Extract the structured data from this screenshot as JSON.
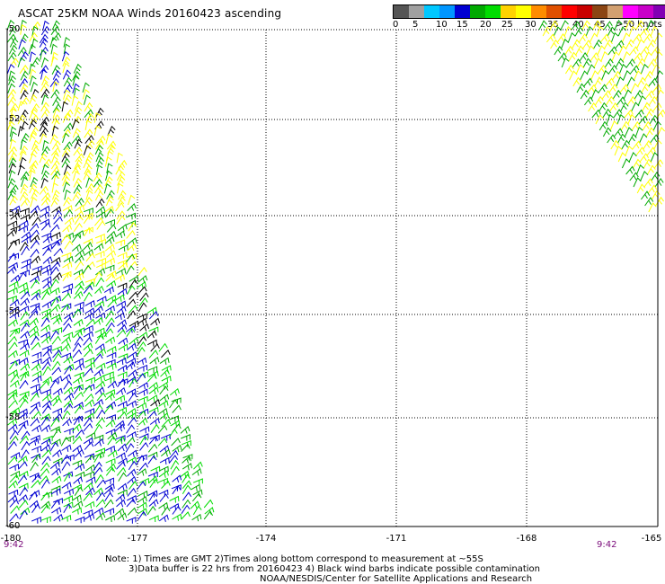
{
  "title": "ASCAT 25KM NOAA Winds 20160423 ascending",
  "legend": {
    "colors": [
      "#555555",
      "#a0a0a0",
      "#00c8ff",
      "#0096ff",
      "#0000d2",
      "#00aa00",
      "#00dc00",
      "#ffd200",
      "#ffff00",
      "#ff8c00",
      "#e05000",
      "#ff0000",
      "#c80000",
      "#8b4513",
      "#d2a070",
      "#ff00ff",
      "#c800c8",
      "#8200b4",
      "#5a0096"
    ],
    "labels": [
      "0",
      "5",
      "10",
      "15",
      "20",
      "25",
      "30",
      "35",
      "40",
      "45",
      ">50 knots"
    ]
  },
  "lat_labels": [
    "-50",
    "-52",
    "-54",
    "-56",
    "-58",
    "-60"
  ],
  "lon_labels": [
    "-180",
    "-177",
    "-174",
    "-171",
    "-168",
    "-165"
  ],
  "times": [
    "9:42",
    "9:42"
  ],
  "notes": [
    "Note: 1) Times are GMT 2)Times along bottom correspond to measurement at ~55S",
    "3)Data buffer is 22 hrs from 20160423 4) Black wind barbs indicate possible contamination",
    "NOAA/NESDIS/Center for Satellite Applications and Research"
  ],
  "wind_colors": {
    "black": "#000000",
    "blue": "#0000d2",
    "green": "#00aa00",
    "lightgreen": "#00dc00",
    "yellow": "#ffff00"
  }
}
